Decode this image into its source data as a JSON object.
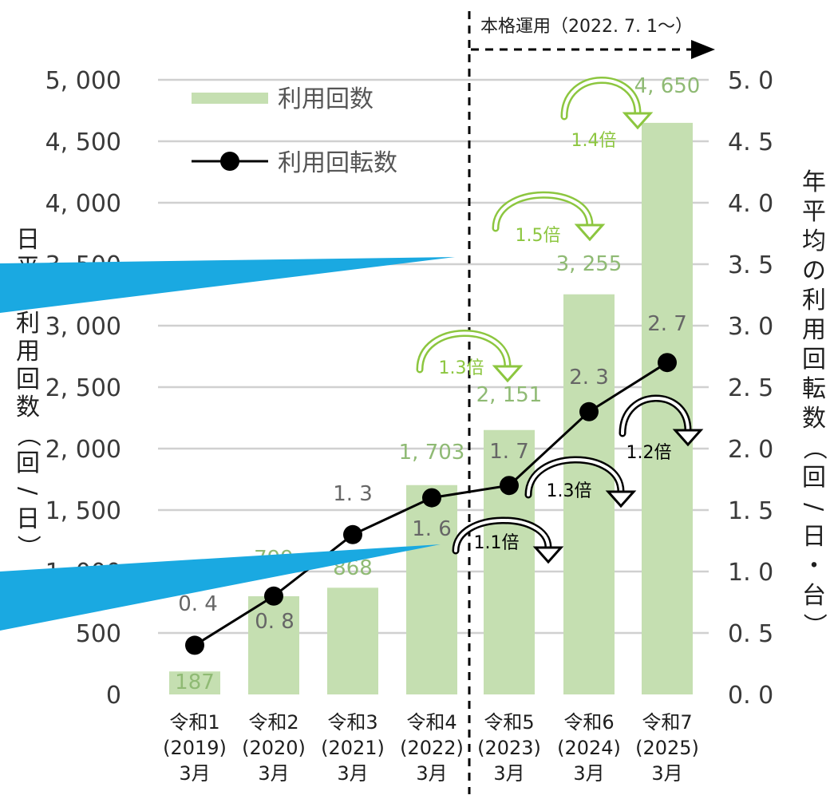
{
  "chart_data": {
    "type": "bar",
    "categories": [
      [
        "令和1",
        "(2019)",
        "3月"
      ],
      [
        "令和2",
        "(2020)",
        "3月"
      ],
      [
        "令和3",
        "(2021)",
        "3月"
      ],
      [
        "令和4",
        "(2022)",
        "3月"
      ],
      [
        "令和5",
        "(2023)",
        "3月"
      ],
      [
        "令和6",
        "(2024)",
        "3月"
      ],
      [
        "令和7",
        "(2025)",
        "3月"
      ]
    ],
    "series": [
      {
        "name": "利用回数",
        "kind": "bar",
        "axis": "left",
        "values": [
          187,
          799,
          868,
          1703,
          2151,
          3255,
          4650
        ],
        "labels": [
          "187",
          "799",
          "868",
          "1, 703",
          "2, 151",
          "3, 255",
          "4, 650"
        ]
      },
      {
        "name": "利用回転数",
        "kind": "line",
        "axis": "right",
        "values": [
          0.4,
          0.8,
          1.3,
          1.6,
          1.7,
          2.3,
          2.7
        ],
        "labels": [
          "0. 4",
          "0. 8",
          "1. 3",
          "1. 6",
          "1. 7",
          "2. 3",
          "2. 7"
        ]
      }
    ],
    "ylabel_left": "日平均利用回数（回/日）",
    "ylabel_right": "年平均の利用回転数（回/日・台）",
    "ylim_left": [
      0,
      5000
    ],
    "ylim_right": [
      0,
      5.0
    ],
    "yticks_left": [
      "0",
      "500",
      "1, 000",
      "1, 500",
      "2, 000",
      "2, 500",
      "3, 000",
      "3, 500",
      "4, 000",
      "4, 500",
      "5, 000"
    ],
    "yticks_right": [
      "0. 0",
      "0. 5",
      "1. 0",
      "1. 5",
      "2. 0",
      "2. 5",
      "3. 0",
      "3. 5",
      "4. 0",
      "4. 5",
      "5. 0"
    ],
    "grid": true,
    "legend_position": "top-left",
    "annotations": {
      "operation_start": "本格運用（2022. 7. 1～）",
      "bar_growth": [
        "1.3倍",
        "1.5倍",
        "1.4倍"
      ],
      "line_growth": [
        "1.1倍",
        "1.3倍",
        "1.2倍"
      ]
    },
    "colors": {
      "bar": "#c5dfb1",
      "bar_label": "#8fba74",
      "line": "#000000",
      "bar_arrow": "#8cc63f",
      "callout": "#1aa9e1"
    }
  }
}
